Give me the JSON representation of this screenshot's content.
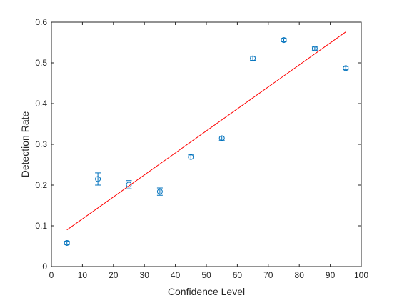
{
  "chart_data": {
    "type": "scatter",
    "title": "",
    "xlabel": "Confidence Level",
    "ylabel": "Detection Rate",
    "xlim": [
      0,
      100
    ],
    "ylim": [
      0,
      0.6
    ],
    "xticks": [
      0,
      10,
      20,
      30,
      40,
      50,
      60,
      70,
      80,
      90,
      100
    ],
    "yticks": [
      0,
      0.1,
      0.2,
      0.3,
      0.4,
      0.5,
      0.6
    ],
    "xtick_labels": [
      "0",
      "10",
      "20",
      "30",
      "40",
      "50",
      "60",
      "70",
      "80",
      "90",
      "100"
    ],
    "ytick_labels": [
      "0",
      "0.1",
      "0.2",
      "0.3",
      "0.4",
      "0.5",
      "0.6"
    ],
    "grid": false,
    "legend": "none",
    "series": [
      {
        "type": "errorbar",
        "marker": "circle",
        "color": "#0072BD",
        "x": [
          5,
          15,
          25,
          35,
          45,
          55,
          65,
          75,
          85,
          95
        ],
        "y": [
          0.058,
          0.215,
          0.201,
          0.184,
          0.269,
          0.315,
          0.511,
          0.556,
          0.535,
          0.487
        ],
        "yerr": [
          0.004,
          0.015,
          0.01,
          0.009,
          0.005,
          0.005,
          0.005,
          0.004,
          0.004,
          0.004
        ]
      },
      {
        "type": "line",
        "color": "#FF0000",
        "x": [
          5,
          95
        ],
        "y": [
          0.09,
          0.576
        ]
      }
    ]
  }
}
